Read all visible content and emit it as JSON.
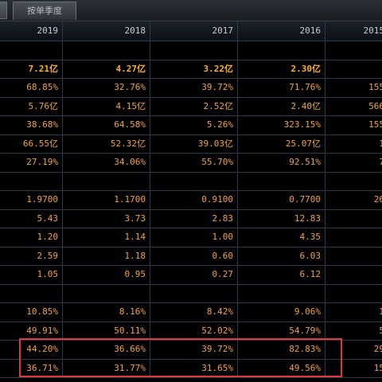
{
  "tabs": {
    "quarter_label": "按单季度"
  },
  "header": {
    "years": [
      "2019",
      "2018",
      "2017",
      "2016",
      "2015"
    ]
  },
  "rows": [
    {
      "type": "blank",
      "values": [
        "",
        "",
        "",
        "",
        ""
      ]
    },
    {
      "type": "bold",
      "values": [
        "7.21亿",
        "4.27亿",
        "3.22亿",
        "2.30亿",
        ""
      ]
    },
    {
      "type": "data",
      "values": [
        "68.85%",
        "32.76%",
        "39.72%",
        "71.76%",
        "155"
      ]
    },
    {
      "type": "data",
      "values": [
        "5.76亿",
        "4.15亿",
        "2.52亿",
        "2.40亿",
        "566"
      ]
    },
    {
      "type": "data",
      "values": [
        "38.68%",
        "64.58%",
        "5.26%",
        "323.15%",
        "155"
      ]
    },
    {
      "type": "data",
      "values": [
        "66.55亿",
        "52.32亿",
        "39.03亿",
        "25.07亿",
        "1"
      ]
    },
    {
      "type": "data",
      "values": [
        "27.19%",
        "34.06%",
        "55.70%",
        "92.51%",
        "7"
      ]
    },
    {
      "type": "blank",
      "values": [
        "",
        "",
        "",
        "",
        ""
      ]
    },
    {
      "type": "data",
      "values": [
        "1.9700",
        "1.1700",
        "0.9100",
        "0.7700",
        "26"
      ]
    },
    {
      "type": "data",
      "values": [
        "5.43",
        "3.73",
        "2.83",
        "12.83",
        ""
      ]
    },
    {
      "type": "data",
      "values": [
        "1.20",
        "1.14",
        "1.00",
        "4.35",
        ""
      ]
    },
    {
      "type": "data",
      "values": [
        "2.59",
        "1.18",
        "0.60",
        "6.03",
        ""
      ]
    },
    {
      "type": "data",
      "values": [
        "1.05",
        "0.95",
        "0.27",
        "6.12",
        ""
      ]
    },
    {
      "type": "blank",
      "values": [
        "",
        "",
        "",
        "",
        ""
      ]
    },
    {
      "type": "data",
      "values": [
        "10.85%",
        "8.16%",
        "8.42%",
        "9.06%",
        "1"
      ]
    },
    {
      "type": "data",
      "values": [
        "49.91%",
        "50.11%",
        "52.02%",
        "54.79%",
        "5"
      ]
    },
    {
      "type": "data",
      "values": [
        "44.20%",
        "36.66%",
        "39.72%",
        "82.83%",
        "29"
      ]
    },
    {
      "type": "data",
      "values": [
        "36.71%",
        "31.77%",
        "31.65%",
        "49.56%",
        "15"
      ]
    }
  ],
  "colors": {
    "value_text": "#f2a23a",
    "highlight_border": "#e0373d",
    "grid_line": "#2a3a4a",
    "background": "#000000"
  }
}
